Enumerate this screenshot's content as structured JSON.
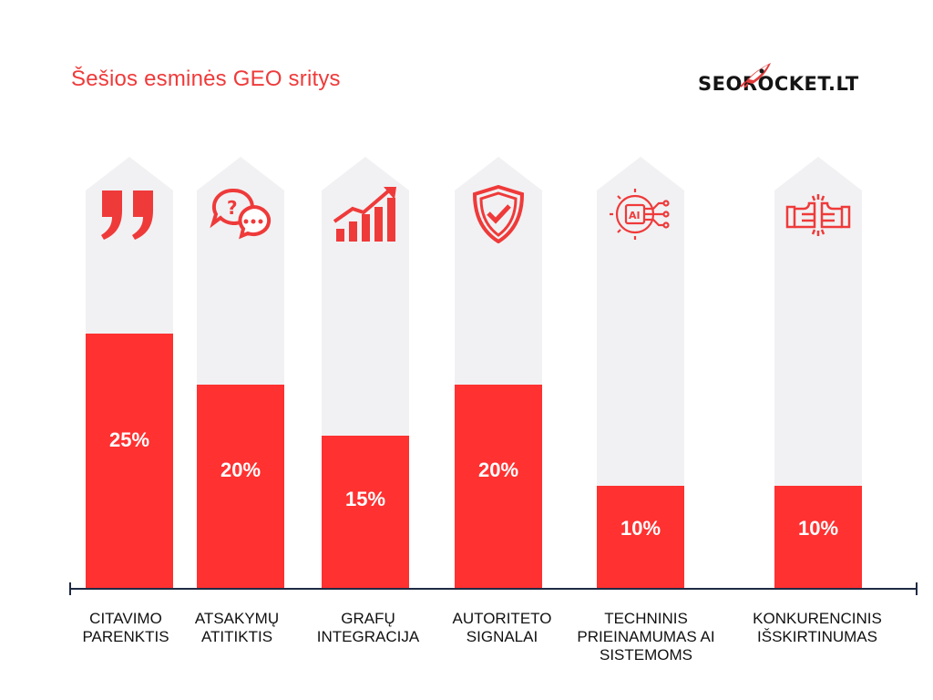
{
  "brand": {
    "logo_text": "SEOROCKET.LT",
    "accent_color": "#ff3131",
    "ghost_color": "#f1f1f3"
  },
  "chart_data": {
    "type": "bar",
    "title": "Šešios esminės GEO sritys",
    "categories": [
      "CITAVIMO PARENKTIS",
      "ATSAKYMŲ ATITIKTIS",
      "GRAFŲ INTEGRACIJA",
      "AUTORITETO SIGNALAI",
      "TECHNINIS PRIEINAMUMAS AI SISTEMOMS",
      "KONKURENCINIS IŠSKIRTINUMAS"
    ],
    "category_lines": [
      [
        "CITAVIMO",
        "PARENKTIS"
      ],
      [
        "ATSAKYMŲ",
        "ATITIKTIS"
      ],
      [
        "GRAFŲ",
        "INTEGRACIJA"
      ],
      [
        "AUTORITETO",
        "SIGNALAI"
      ],
      [
        "TECHNINIS",
        "PRIEINAMUMAS AI",
        "SISTEMOMS"
      ],
      [
        "KONKURENCINIS",
        "IŠSKIRTINUMAS"
      ]
    ],
    "values": [
      25,
      20,
      15,
      20,
      10,
      10
    ],
    "value_labels": [
      "25%",
      "20%",
      "15%",
      "20%",
      "10%",
      "10%"
    ],
    "icons": [
      "quote-icon",
      "chat-bubbles-icon",
      "growth-chart-icon",
      "shield-check-icon",
      "ai-chip-icon",
      "fist-bump-icon"
    ],
    "xlabel": "",
    "ylabel": "",
    "ylim": [
      0,
      50
    ],
    "unit": "%"
  }
}
